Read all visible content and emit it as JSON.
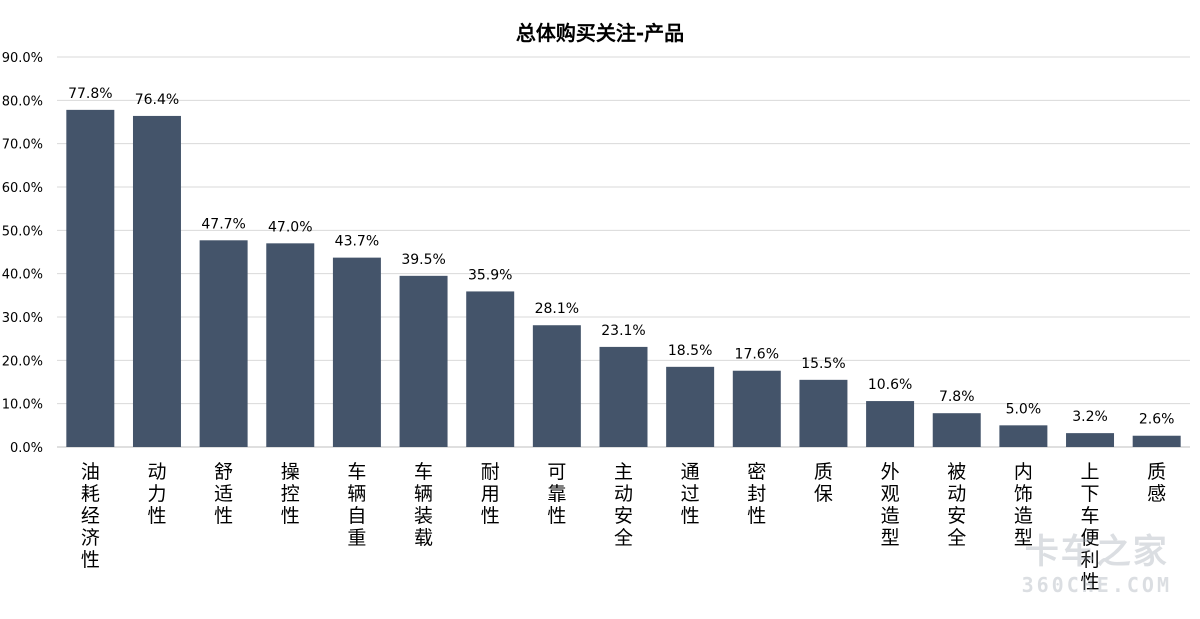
{
  "chart_data": {
    "type": "bar",
    "title": "总体购买关注-产品",
    "categories": [
      "油耗经济性",
      "动力性",
      "舒适性",
      "操控性",
      "车辆自重",
      "车辆装载",
      "耐用性",
      "可靠性",
      "主动安全",
      "通过性",
      "密封性",
      "质保",
      "外观造型",
      "被动安全",
      "内饰造型",
      "上下车便利性",
      "质感"
    ],
    "values": [
      77.8,
      76.4,
      47.7,
      47.0,
      43.7,
      39.5,
      35.9,
      28.1,
      23.1,
      18.5,
      17.6,
      15.5,
      10.6,
      7.8,
      5.0,
      3.2,
      2.6
    ],
    "data_labels": [
      "77.8%",
      "76.4%",
      "47.7%",
      "47.0%",
      "43.7%",
      "39.5%",
      "35.9%",
      "28.1%",
      "23.1%",
      "18.5%",
      "17.6%",
      "15.5%",
      "10.6%",
      "7.8%",
      "5.0%",
      "3.2%",
      "2.6%"
    ],
    "y_ticks": [
      "0.0%",
      "10.0%",
      "20.0%",
      "30.0%",
      "40.0%",
      "50.0%",
      "60.0%",
      "70.0%",
      "80.0%",
      "90.0%"
    ],
    "ylim": [
      0,
      90
    ],
    "grid": true,
    "legend": "none",
    "bar_color": "#44546a"
  },
  "watermark": {
    "main": "卡车之家",
    "sub": "360CHE.COM"
  }
}
